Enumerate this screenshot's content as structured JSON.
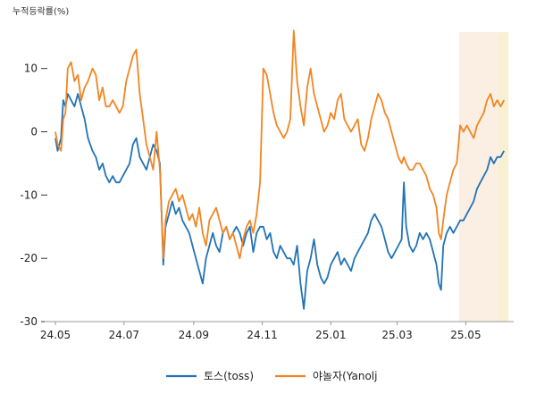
{
  "chart_data": {
    "type": "line",
    "ylabel": "누적등락률(%)",
    "ylim": [
      -30,
      18
    ],
    "xlim": [
      "2024-05-01",
      "2025-06-15"
    ],
    "yticks": [
      10,
      0,
      -10,
      -20,
      -30
    ],
    "xticks": [
      {
        "date": "2024-05-01",
        "label": "24.05"
      },
      {
        "date": "2024-07-01",
        "label": "24.07"
      },
      {
        "date": "2024-09-01",
        "label": "24.09"
      },
      {
        "date": "2024-11-01",
        "label": "24.11"
      },
      {
        "date": "2025-01-01",
        "label": "25.01"
      },
      {
        "date": "2025-03-01",
        "label": "25.03"
      },
      {
        "date": "2025-05-01",
        "label": "25.05"
      }
    ],
    "highlights": [
      {
        "start": "2025-04-25",
        "end": "2025-05-30",
        "color": "#fbeee3"
      },
      {
        "start": "2025-05-30",
        "end": "2025-06-08",
        "color": "#f7f0d2"
      }
    ],
    "grid": false,
    "legend": "bottom",
    "series": [
      {
        "name": "토스(toss)",
        "color": "#2273b5",
        "points": [
          [
            "2024-05-01",
            -1
          ],
          [
            "2024-05-03",
            -3
          ],
          [
            "2024-05-06",
            -1
          ],
          [
            "2024-05-08",
            5
          ],
          [
            "2024-05-10",
            4
          ],
          [
            "2024-05-12",
            6
          ],
          [
            "2024-05-15",
            5
          ],
          [
            "2024-05-18",
            4
          ],
          [
            "2024-05-21",
            6
          ],
          [
            "2024-05-24",
            4
          ],
          [
            "2024-05-27",
            2
          ],
          [
            "2024-05-30",
            -1
          ],
          [
            "2024-06-03",
            -3
          ],
          [
            "2024-06-06",
            -4
          ],
          [
            "2024-06-09",
            -6
          ],
          [
            "2024-06-12",
            -5
          ],
          [
            "2024-06-15",
            -7
          ],
          [
            "2024-06-18",
            -8
          ],
          [
            "2024-06-21",
            -7
          ],
          [
            "2024-06-24",
            -8
          ],
          [
            "2024-06-27",
            -8
          ],
          [
            "2024-06-30",
            -7
          ],
          [
            "2024-07-03",
            -6
          ],
          [
            "2024-07-06",
            -5
          ],
          [
            "2024-07-09",
            -2
          ],
          [
            "2024-07-12",
            -1
          ],
          [
            "2024-07-15",
            -4
          ],
          [
            "2024-07-18",
            -5
          ],
          [
            "2024-07-21",
            -6
          ],
          [
            "2024-07-24",
            -4
          ],
          [
            "2024-07-27",
            -2
          ],
          [
            "2024-07-30",
            -3
          ],
          [
            "2024-08-02",
            -5
          ],
          [
            "2024-08-05",
            -21
          ],
          [
            "2024-08-07",
            -15
          ],
          [
            "2024-08-10",
            -13
          ],
          [
            "2024-08-13",
            -11
          ],
          [
            "2024-08-16",
            -13
          ],
          [
            "2024-08-19",
            -12
          ],
          [
            "2024-08-22",
            -14
          ],
          [
            "2024-08-25",
            -15
          ],
          [
            "2024-08-28",
            -16
          ],
          [
            "2024-08-31",
            -18
          ],
          [
            "2024-09-03",
            -20
          ],
          [
            "2024-09-06",
            -22
          ],
          [
            "2024-09-09",
            -24
          ],
          [
            "2024-09-12",
            -20
          ],
          [
            "2024-09-15",
            -18
          ],
          [
            "2024-09-18",
            -16
          ],
          [
            "2024-09-21",
            -18
          ],
          [
            "2024-09-24",
            -19
          ],
          [
            "2024-09-27",
            -16
          ],
          [
            "2024-09-30",
            -15
          ],
          [
            "2024-10-03",
            -17
          ],
          [
            "2024-10-06",
            -16
          ],
          [
            "2024-10-09",
            -15
          ],
          [
            "2024-10-12",
            -16
          ],
          [
            "2024-10-15",
            -18
          ],
          [
            "2024-10-18",
            -16
          ],
          [
            "2024-10-21",
            -15
          ],
          [
            "2024-10-24",
            -19
          ],
          [
            "2024-10-27",
            -16
          ],
          [
            "2024-10-30",
            -15
          ],
          [
            "2024-11-02",
            -15
          ],
          [
            "2024-11-05",
            -17
          ],
          [
            "2024-11-08",
            -16
          ],
          [
            "2024-11-11",
            -19
          ],
          [
            "2024-11-14",
            -20
          ],
          [
            "2024-11-17",
            -18
          ],
          [
            "2024-11-20",
            -19
          ],
          [
            "2024-11-23",
            -20
          ],
          [
            "2024-11-26",
            -20
          ],
          [
            "2024-11-29",
            -21
          ],
          [
            "2024-12-02",
            -18
          ],
          [
            "2024-12-05",
            -24
          ],
          [
            "2024-12-08",
            -28
          ],
          [
            "2024-12-11",
            -22
          ],
          [
            "2024-12-14",
            -20
          ],
          [
            "2024-12-17",
            -17
          ],
          [
            "2024-12-20",
            -21
          ],
          [
            "2024-12-23",
            -23
          ],
          [
            "2024-12-26",
            -24
          ],
          [
            "2024-12-29",
            -23
          ],
          [
            "2025-01-01",
            -21
          ],
          [
            "2025-01-04",
            -20
          ],
          [
            "2025-01-07",
            -19
          ],
          [
            "2025-01-10",
            -21
          ],
          [
            "2025-01-13",
            -20
          ],
          [
            "2025-01-16",
            -21
          ],
          [
            "2025-01-19",
            -22
          ],
          [
            "2025-01-22",
            -20
          ],
          [
            "2025-01-25",
            -19
          ],
          [
            "2025-01-28",
            -18
          ],
          [
            "2025-01-31",
            -17
          ],
          [
            "2025-02-03",
            -16
          ],
          [
            "2025-02-06",
            -14
          ],
          [
            "2025-02-09",
            -13
          ],
          [
            "2025-02-12",
            -14
          ],
          [
            "2025-02-15",
            -15
          ],
          [
            "2025-02-18",
            -17
          ],
          [
            "2025-02-21",
            -19
          ],
          [
            "2025-02-24",
            -20
          ],
          [
            "2025-02-27",
            -19
          ],
          [
            "2025-03-02",
            -18
          ],
          [
            "2025-03-05",
            -17
          ],
          [
            "2025-03-07",
            -8
          ],
          [
            "2025-03-09",
            -15
          ],
          [
            "2025-03-12",
            -18
          ],
          [
            "2025-03-15",
            -19
          ],
          [
            "2025-03-18",
            -18
          ],
          [
            "2025-03-21",
            -16
          ],
          [
            "2025-03-24",
            -17
          ],
          [
            "2025-03-27",
            -16
          ],
          [
            "2025-03-30",
            -17
          ],
          [
            "2025-04-02",
            -19
          ],
          [
            "2025-04-05",
            -21
          ],
          [
            "2025-04-07",
            -24
          ],
          [
            "2025-04-09",
            -25
          ],
          [
            "2025-04-11",
            -18
          ],
          [
            "2025-04-14",
            -16
          ],
          [
            "2025-04-17",
            -15
          ],
          [
            "2025-04-20",
            -16
          ],
          [
            "2025-04-23",
            -15
          ],
          [
            "2025-04-26",
            -14
          ],
          [
            "2025-04-29",
            -14
          ],
          [
            "2025-05-02",
            -13
          ],
          [
            "2025-05-05",
            -12
          ],
          [
            "2025-05-08",
            -11
          ],
          [
            "2025-05-11",
            -9
          ],
          [
            "2025-05-14",
            -8
          ],
          [
            "2025-05-17",
            -7
          ],
          [
            "2025-05-20",
            -6
          ],
          [
            "2025-05-23",
            -4
          ],
          [
            "2025-05-26",
            -5
          ],
          [
            "2025-05-29",
            -4
          ],
          [
            "2025-06-01",
            -4
          ],
          [
            "2025-06-04",
            -3
          ]
        ]
      },
      {
        "name": "야놀자(Yanolj",
        "color": "#f28522",
        "points": [
          [
            "2024-05-01",
            0
          ],
          [
            "2024-05-03",
            -2
          ],
          [
            "2024-05-06",
            -3
          ],
          [
            "2024-05-08",
            2
          ],
          [
            "2024-05-10",
            3
          ],
          [
            "2024-05-12",
            10
          ],
          [
            "2024-05-15",
            11
          ],
          [
            "2024-05-18",
            8
          ],
          [
            "2024-05-21",
            9
          ],
          [
            "2024-05-24",
            5
          ],
          [
            "2024-05-27",
            7
          ],
          [
            "2024-05-30",
            8
          ],
          [
            "2024-06-03",
            10
          ],
          [
            "2024-06-06",
            9
          ],
          [
            "2024-06-09",
            5
          ],
          [
            "2024-06-12",
            7
          ],
          [
            "2024-06-15",
            4
          ],
          [
            "2024-06-18",
            4
          ],
          [
            "2024-06-21",
            5
          ],
          [
            "2024-06-24",
            4
          ],
          [
            "2024-06-27",
            3
          ],
          [
            "2024-06-30",
            4
          ],
          [
            "2024-07-03",
            8
          ],
          [
            "2024-07-06",
            10
          ],
          [
            "2024-07-09",
            12
          ],
          [
            "2024-07-12",
            13
          ],
          [
            "2024-07-15",
            6
          ],
          [
            "2024-07-18",
            2
          ],
          [
            "2024-07-21",
            -2
          ],
          [
            "2024-07-24",
            -4
          ],
          [
            "2024-07-27",
            -6
          ],
          [
            "2024-07-30",
            0
          ],
          [
            "2024-08-02",
            -6
          ],
          [
            "2024-08-05",
            -20
          ],
          [
            "2024-08-07",
            -14
          ],
          [
            "2024-08-10",
            -11
          ],
          [
            "2024-08-13",
            -10
          ],
          [
            "2024-08-16",
            -9
          ],
          [
            "2024-08-19",
            -11
          ],
          [
            "2024-08-22",
            -10
          ],
          [
            "2024-08-25",
            -12
          ],
          [
            "2024-08-28",
            -14
          ],
          [
            "2024-08-31",
            -13
          ],
          [
            "2024-09-03",
            -15
          ],
          [
            "2024-09-06",
            -12
          ],
          [
            "2024-09-09",
            -16
          ],
          [
            "2024-09-12",
            -18
          ],
          [
            "2024-09-15",
            -14
          ],
          [
            "2024-09-18",
            -13
          ],
          [
            "2024-09-21",
            -12
          ],
          [
            "2024-09-24",
            -14
          ],
          [
            "2024-09-27",
            -16
          ],
          [
            "2024-09-30",
            -15
          ],
          [
            "2024-10-03",
            -17
          ],
          [
            "2024-10-06",
            -16
          ],
          [
            "2024-10-09",
            -18
          ],
          [
            "2024-10-12",
            -20
          ],
          [
            "2024-10-15",
            -17
          ],
          [
            "2024-10-18",
            -15
          ],
          [
            "2024-10-21",
            -14
          ],
          [
            "2024-10-24",
            -16
          ],
          [
            "2024-10-27",
            -13
          ],
          [
            "2024-10-30",
            -8
          ],
          [
            "2024-11-02",
            10
          ],
          [
            "2024-11-05",
            9
          ],
          [
            "2024-11-08",
            6
          ],
          [
            "2024-11-11",
            3
          ],
          [
            "2024-11-14",
            1
          ],
          [
            "2024-11-17",
            0
          ],
          [
            "2024-11-20",
            -1
          ],
          [
            "2024-11-23",
            0
          ],
          [
            "2024-11-26",
            2
          ],
          [
            "2024-11-29",
            16
          ],
          [
            "2024-12-02",
            8
          ],
          [
            "2024-12-05",
            4
          ],
          [
            "2024-12-08",
            1
          ],
          [
            "2024-12-11",
            7
          ],
          [
            "2024-12-14",
            10
          ],
          [
            "2024-12-17",
            6
          ],
          [
            "2024-12-20",
            4
          ],
          [
            "2024-12-23",
            2
          ],
          [
            "2024-12-26",
            0
          ],
          [
            "2024-12-29",
            1
          ],
          [
            "2025-01-01",
            3
          ],
          [
            "2025-01-04",
            2
          ],
          [
            "2025-01-07",
            5
          ],
          [
            "2025-01-10",
            6
          ],
          [
            "2025-01-13",
            2
          ],
          [
            "2025-01-16",
            1
          ],
          [
            "2025-01-19",
            0
          ],
          [
            "2025-01-22",
            1
          ],
          [
            "2025-01-25",
            2
          ],
          [
            "2025-01-28",
            -2
          ],
          [
            "2025-01-31",
            -3
          ],
          [
            "2025-02-03",
            -1
          ],
          [
            "2025-02-06",
            2
          ],
          [
            "2025-02-09",
            4
          ],
          [
            "2025-02-12",
            6
          ],
          [
            "2025-02-15",
            5
          ],
          [
            "2025-02-18",
            3
          ],
          [
            "2025-02-21",
            2
          ],
          [
            "2025-02-24",
            0
          ],
          [
            "2025-02-27",
            -2
          ],
          [
            "2025-03-02",
            -4
          ],
          [
            "2025-03-05",
            -5
          ],
          [
            "2025-03-07",
            -4
          ],
          [
            "2025-03-09",
            -5
          ],
          [
            "2025-03-12",
            -6
          ],
          [
            "2025-03-15",
            -6
          ],
          [
            "2025-03-18",
            -5
          ],
          [
            "2025-03-21",
            -5
          ],
          [
            "2025-03-24",
            -6
          ],
          [
            "2025-03-27",
            -7
          ],
          [
            "2025-03-30",
            -9
          ],
          [
            "2025-04-02",
            -10
          ],
          [
            "2025-04-05",
            -12
          ],
          [
            "2025-04-07",
            -16
          ],
          [
            "2025-04-09",
            -17
          ],
          [
            "2025-04-11",
            -14
          ],
          [
            "2025-04-14",
            -10
          ],
          [
            "2025-04-17",
            -8
          ],
          [
            "2025-04-20",
            -6
          ],
          [
            "2025-04-23",
            -5
          ],
          [
            "2025-04-26",
            1
          ],
          [
            "2025-04-29",
            0
          ],
          [
            "2025-05-02",
            1
          ],
          [
            "2025-05-05",
            0
          ],
          [
            "2025-05-08",
            -1
          ],
          [
            "2025-05-11",
            1
          ],
          [
            "2025-05-14",
            2
          ],
          [
            "2025-05-17",
            3
          ],
          [
            "2025-05-20",
            5
          ],
          [
            "2025-05-23",
            6
          ],
          [
            "2025-05-26",
            4
          ],
          [
            "2025-05-29",
            5
          ],
          [
            "2025-06-01",
            4
          ],
          [
            "2025-06-04",
            5
          ]
        ]
      }
    ]
  }
}
